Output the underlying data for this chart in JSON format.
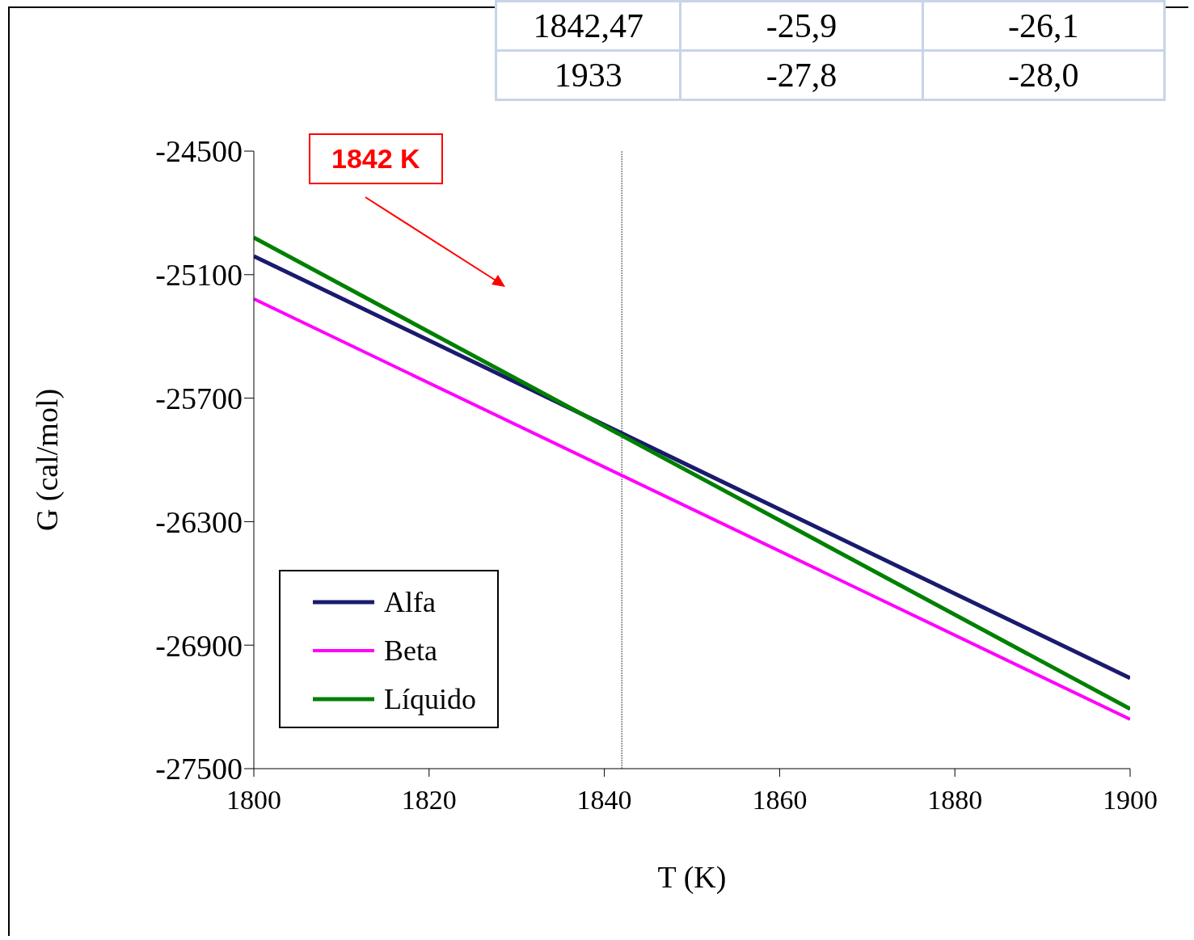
{
  "chart_data": {
    "type": "line",
    "xlabel": "T (K)",
    "ylabel": "G (cal/mol)",
    "x": [
      1800,
      1900
    ],
    "series": [
      {
        "name": "Alfa",
        "color": "#1a1a6e",
        "values": [
          -25010,
          -27060
        ]
      },
      {
        "name": "Beta",
        "color": "#ff00ff",
        "values": [
          -25218,
          -27260
        ]
      },
      {
        "name": "Líquido",
        "color": "#008000",
        "values": [
          -24920,
          -27210
        ]
      }
    ],
    "xlim": [
      1800,
      1900
    ],
    "xticks": [
      1800,
      1820,
      1840,
      1860,
      1880,
      1900
    ],
    "ylim": [
      -27500,
      -24500
    ],
    "yticks": [
      -27500,
      -26900,
      -26300,
      -25700,
      -25100,
      -24500
    ],
    "ref_lines": [
      {
        "axis": "x",
        "value": 1842,
        "color": "#808080"
      }
    ],
    "annotations": [
      "1842 K",
      "1842,47",
      "-25,9",
      "-26,1",
      "1933",
      "-27,8",
      "-28,0"
    ],
    "legend": "bottom left",
    "marker": "none",
    "line_style": "solid"
  }
}
